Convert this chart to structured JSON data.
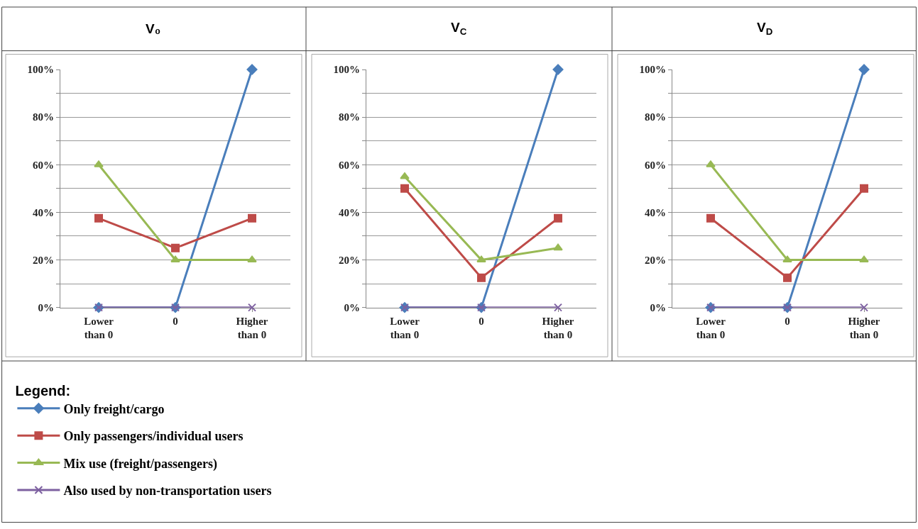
{
  "chart_data": [
    {
      "type": "line",
      "title": "V₀",
      "categories": [
        "Lower than 0",
        "0",
        "Higher than 0"
      ],
      "ylim": [
        0,
        100
      ],
      "yticks": [
        {
          "value": 0,
          "label": "0%"
        },
        {
          "value": 10,
          "label": null
        },
        {
          "value": 20,
          "label": "20%"
        },
        {
          "value": 30,
          "label": null
        },
        {
          "value": 40,
          "label": "40%"
        },
        {
          "value": 50,
          "label": null
        },
        {
          "value": 60,
          "label": "60%"
        },
        {
          "value": 70,
          "label": null
        },
        {
          "value": 80,
          "label": "80%"
        },
        {
          "value": 90,
          "label": null
        },
        {
          "value": 100,
          "label": "100%"
        }
      ],
      "grid": "y",
      "legend": "bottom",
      "legend_title": "Legend:",
      "line_style": "solid",
      "series": [
        {
          "name": "Only freight/cargo",
          "color": "#4a7ebb",
          "marker": "diamond",
          "values": [
            0,
            0,
            100
          ]
        },
        {
          "name": "Only passengers/individual users",
          "color": "#be4b48",
          "marker": "square",
          "values": [
            37.5,
            25,
            37.5
          ]
        },
        {
          "name": "Mix use (freight/passengers)",
          "color": "#98b954",
          "marker": "triangle",
          "values": [
            60,
            20,
            20
          ]
        },
        {
          "name": "Also used by non-transportation users",
          "color": "#7d60a0",
          "marker": "cross",
          "values": [
            0,
            0,
            0
          ]
        }
      ]
    },
    {
      "type": "line",
      "title": "V$_{C}$",
      "categories": [
        "Lower than 0",
        "0",
        "Higher than 0"
      ],
      "ylim": [
        0,
        100
      ],
      "yticks": [
        {
          "value": 0,
          "label": "0%"
        },
        {
          "value": 10,
          "label": null
        },
        {
          "value": 20,
          "label": "20%"
        },
        {
          "value": 30,
          "label": null
        },
        {
          "value": 40,
          "label": "40%"
        },
        {
          "value": 50,
          "label": null
        },
        {
          "value": 60,
          "label": "60%"
        },
        {
          "value": 70,
          "label": null
        },
        {
          "value": 80,
          "label": "80%"
        },
        {
          "value": 90,
          "label": null
        },
        {
          "value": 100,
          "label": "100%"
        }
      ],
      "grid": "y",
      "line_style": "solid",
      "series": [
        {
          "color": "#4a7ebb",
          "marker": "diamond",
          "values": [
            0,
            0,
            100
          ]
        },
        {
          "color": "#be4b48",
          "marker": "square",
          "values": [
            50,
            12.5,
            37.5
          ]
        },
        {
          "color": "#98b954",
          "marker": "triangle",
          "values": [
            55,
            20,
            25
          ]
        },
        {
          "color": "#7d60a0",
          "marker": "cross",
          "values": [
            0,
            0,
            0
          ]
        }
      ]
    },
    {
      "type": "line",
      "title": "V$_{D}$",
      "categories": [
        "Lower than 0",
        "0",
        "Higher than 0"
      ],
      "ylim": [
        0,
        100
      ],
      "yticks": [
        {
          "value": 0,
          "label": "0%"
        },
        {
          "value": 10,
          "label": null
        },
        {
          "value": 20,
          "label": "20%"
        },
        {
          "value": 30,
          "label": null
        },
        {
          "value": 40,
          "label": "40%"
        },
        {
          "value": 50,
          "label": null
        },
        {
          "value": 60,
          "label": "60%"
        },
        {
          "value": 70,
          "label": null
        },
        {
          "value": 80,
          "label": "80%"
        },
        {
          "value": 90,
          "label": null
        },
        {
          "value": 100,
          "label": "100%"
        }
      ],
      "grid": "y",
      "line_style": "solid",
      "series": [
        {
          "color": "#4a7ebb",
          "marker": "diamond",
          "values": [
            0,
            0,
            100
          ]
        },
        {
          "color": "#be4b48",
          "marker": "square",
          "values": [
            37.5,
            12.5,
            50
          ]
        },
        {
          "color": "#98b954",
          "marker": "triangle",
          "values": [
            60,
            20,
            20
          ]
        },
        {
          "color": "#7d60a0",
          "marker": "cross",
          "values": [
            0,
            0,
            0
          ]
        }
      ]
    }
  ]
}
